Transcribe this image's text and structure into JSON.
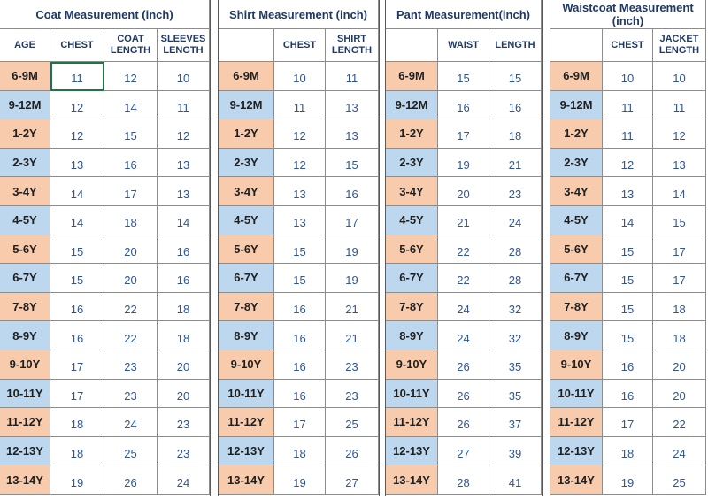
{
  "sections": [
    {
      "title": "Coat Measurement (inch)",
      "columns": [
        "AGE",
        "CHEST",
        "COAT LENGTH",
        "SLEEVES LENGTH"
      ],
      "rows": [
        [
          "6-9M",
          11,
          12,
          10
        ],
        [
          "9-12M",
          12,
          14,
          11
        ],
        [
          "1-2Y",
          12,
          15,
          12
        ],
        [
          "2-3Y",
          13,
          16,
          13
        ],
        [
          "3-4Y",
          14,
          17,
          13
        ],
        [
          "4-5Y",
          14,
          18,
          14
        ],
        [
          "5-6Y",
          15,
          20,
          16
        ],
        [
          "6-7Y",
          15,
          20,
          16
        ],
        [
          "7-8Y",
          16,
          22,
          18
        ],
        [
          "8-9Y",
          16,
          22,
          18
        ],
        [
          "9-10Y",
          17,
          23,
          20
        ],
        [
          "10-11Y",
          17,
          23,
          20
        ],
        [
          "11-12Y",
          18,
          24,
          23
        ],
        [
          "12-13Y",
          18,
          25,
          23
        ],
        [
          "13-14Y",
          19,
          26,
          24
        ]
      ]
    },
    {
      "title": "Shirt Measurement (inch)",
      "columns": [
        "CHEST",
        "SHIRT LENGTH"
      ],
      "rows": [
        [
          "6-9M",
          10,
          11
        ],
        [
          "9-12M",
          11,
          13
        ],
        [
          "1-2Y",
          12,
          13
        ],
        [
          "2-3Y",
          12,
          15
        ],
        [
          "3-4Y",
          13,
          16
        ],
        [
          "4-5Y",
          13,
          17
        ],
        [
          "5-6Y",
          15,
          19
        ],
        [
          "6-7Y",
          15,
          19
        ],
        [
          "7-8Y",
          16,
          21
        ],
        [
          "8-9Y",
          16,
          21
        ],
        [
          "9-10Y",
          16,
          23
        ],
        [
          "10-11Y",
          16,
          23
        ],
        [
          "11-12Y",
          17,
          25
        ],
        [
          "12-13Y",
          18,
          26
        ],
        [
          "13-14Y",
          19,
          27
        ]
      ]
    },
    {
      "title": "Pant Measurement(inch)",
      "columns": [
        "WAIST",
        "LENGTH"
      ],
      "rows": [
        [
          "6-9M",
          15,
          15
        ],
        [
          "9-12M",
          16,
          16
        ],
        [
          "1-2Y",
          17,
          18
        ],
        [
          "2-3Y",
          19,
          21
        ],
        [
          "3-4Y",
          20,
          23
        ],
        [
          "4-5Y",
          21,
          24
        ],
        [
          "5-6Y",
          22,
          28
        ],
        [
          "6-7Y",
          22,
          28
        ],
        [
          "7-8Y",
          24,
          32
        ],
        [
          "8-9Y",
          24,
          32
        ],
        [
          "9-10Y",
          26,
          35
        ],
        [
          "10-11Y",
          26,
          35
        ],
        [
          "11-12Y",
          26,
          37
        ],
        [
          "12-13Y",
          27,
          39
        ],
        [
          "13-14Y",
          28,
          41
        ]
      ]
    },
    {
      "title": "Waistcoat Measurement (inch)",
      "columns": [
        "CHEST",
        "JACKET LENGTH"
      ],
      "rows": [
        [
          "6-9M",
          10,
          10
        ],
        [
          "9-12M",
          11,
          11
        ],
        [
          "1-2Y",
          11,
          12
        ],
        [
          "2-3Y",
          12,
          13
        ],
        [
          "3-4Y",
          13,
          14
        ],
        [
          "4-5Y",
          14,
          15
        ],
        [
          "5-6Y",
          15,
          17
        ],
        [
          "6-7Y",
          15,
          17
        ],
        [
          "7-8Y",
          15,
          18
        ],
        [
          "8-9Y",
          15,
          18
        ],
        [
          "9-10Y",
          16,
          20
        ],
        [
          "10-11Y",
          16,
          20
        ],
        [
          "11-12Y",
          17,
          22
        ],
        [
          "12-13Y",
          18,
          24
        ],
        [
          "13-14Y",
          19,
          25
        ]
      ]
    }
  ]
}
